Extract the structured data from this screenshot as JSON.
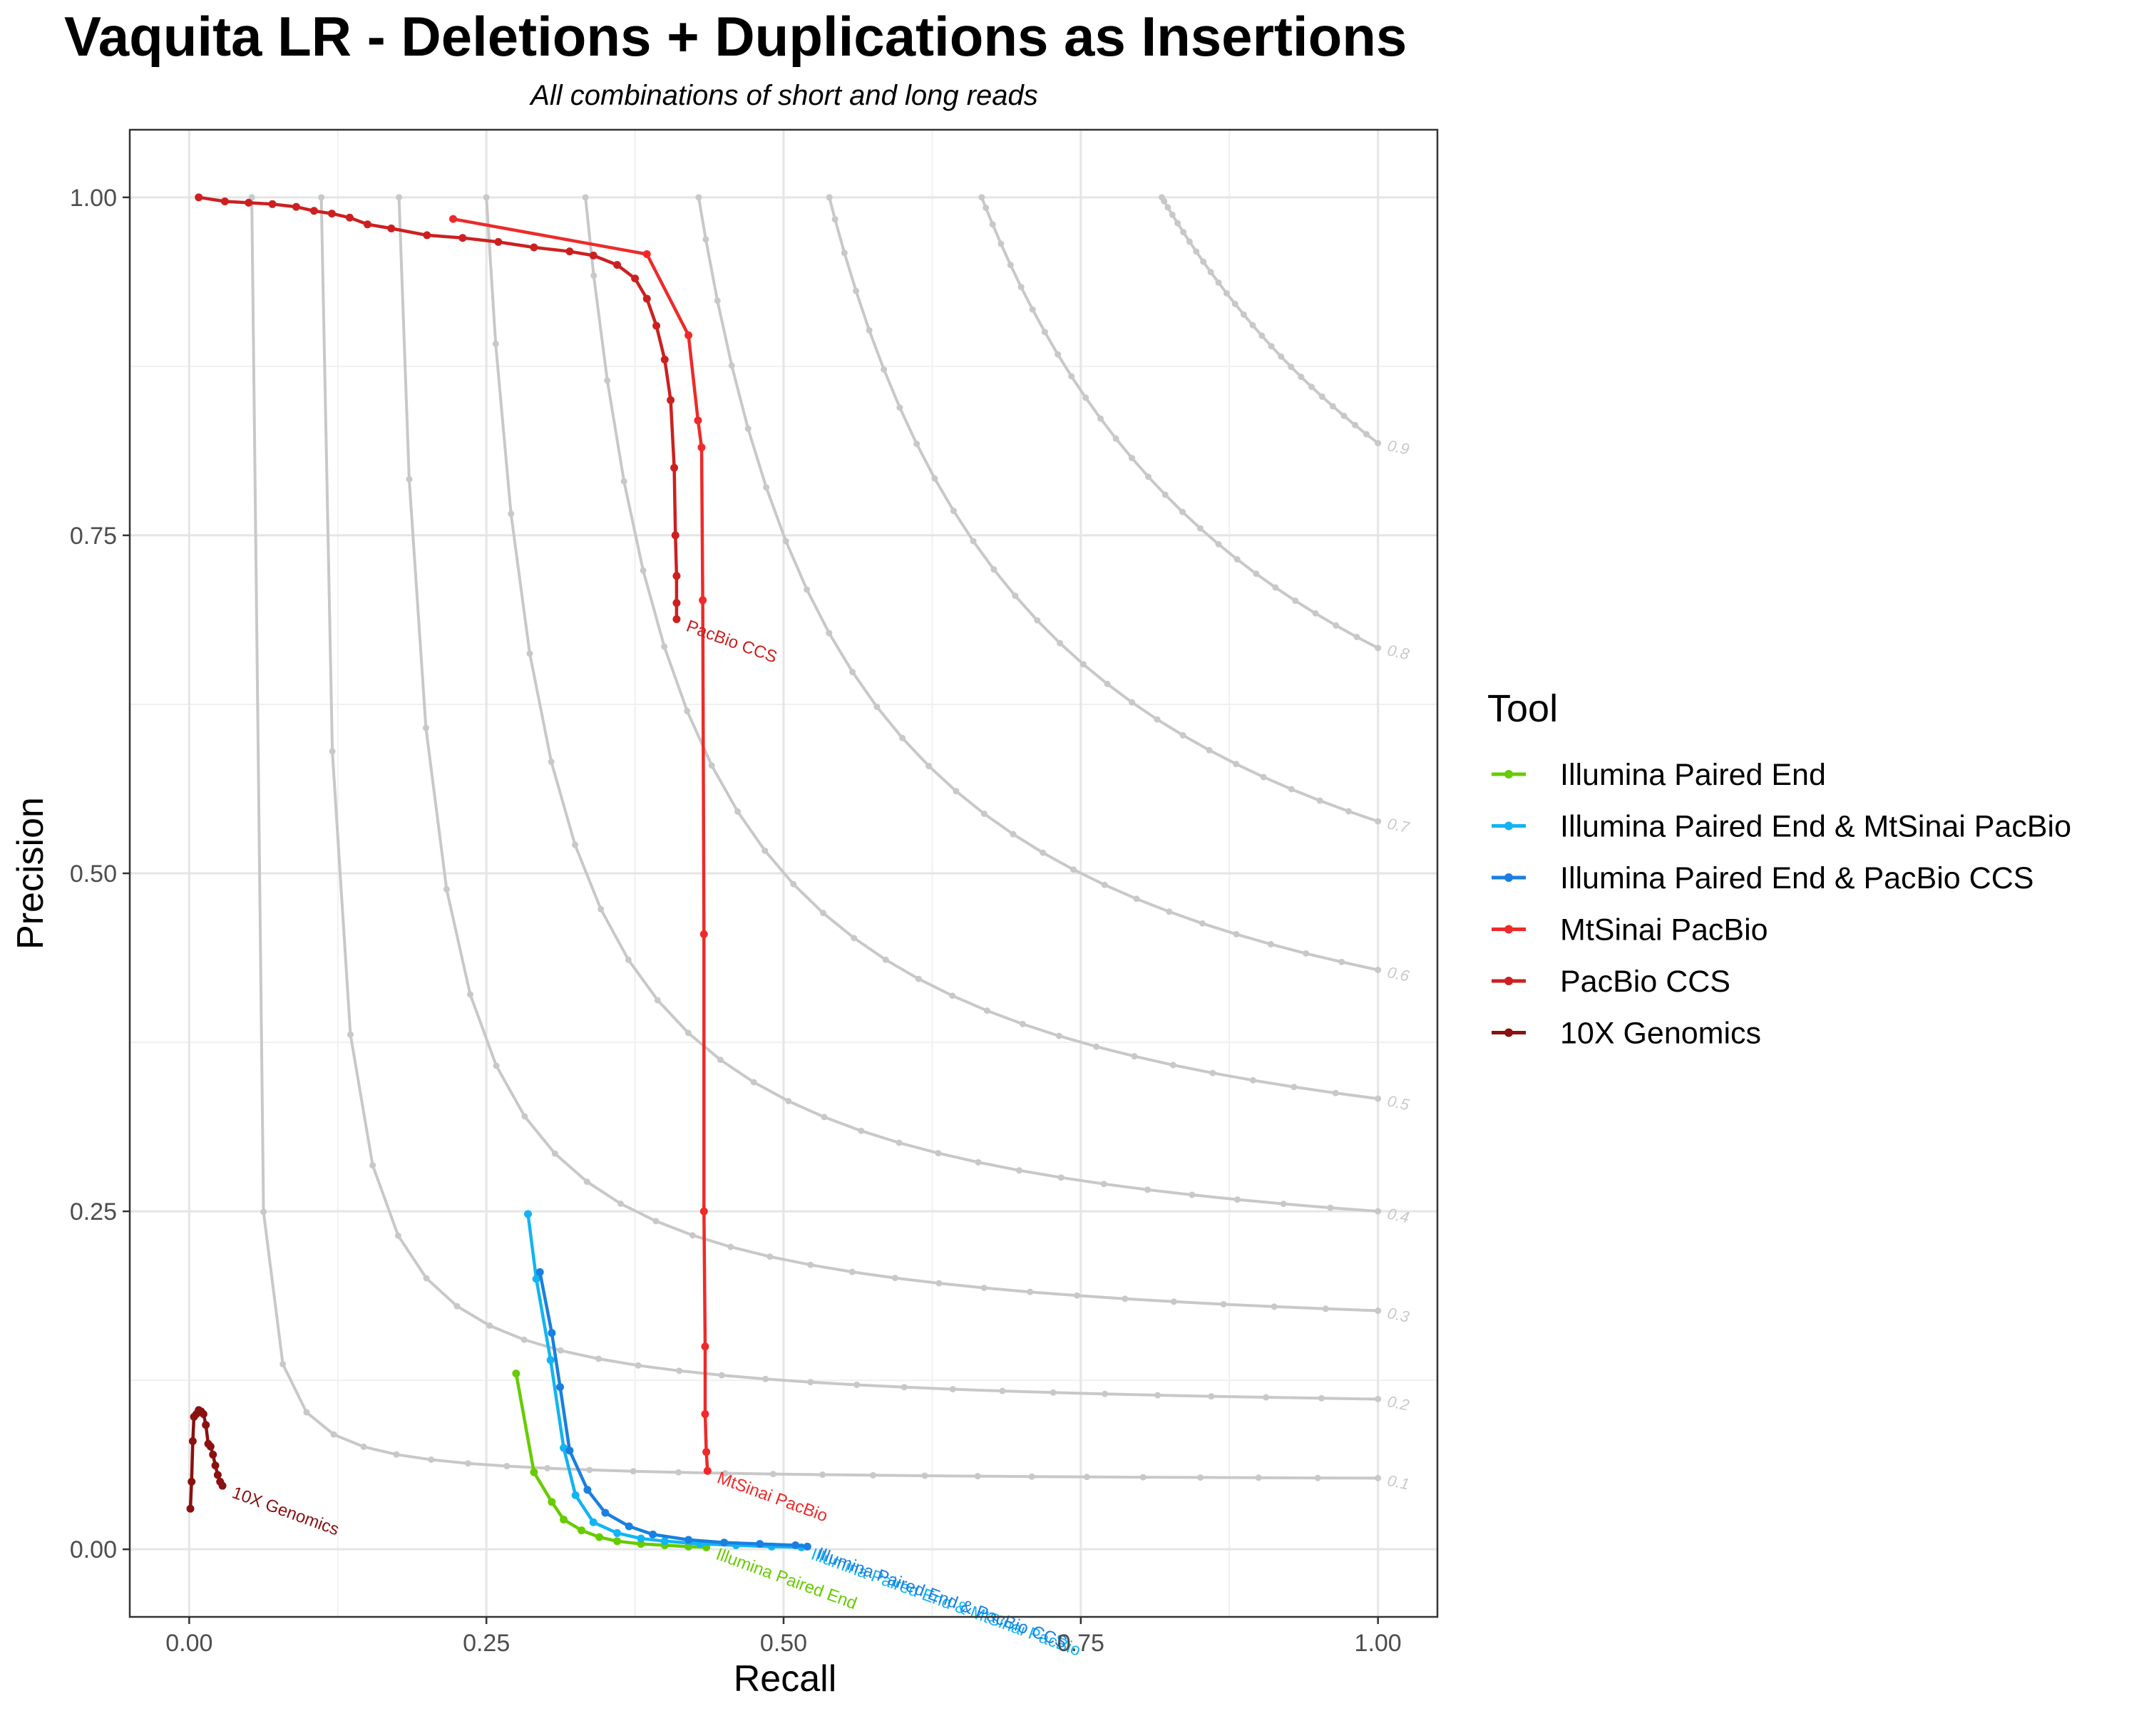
{
  "chart_data": {
    "type": "line",
    "title": "Vaquita LR - Deletions + Duplications as Insertions",
    "subtitle": "All combinations of short and long reads",
    "xlabel": "Recall",
    "ylabel": "Precision",
    "xlim": [
      -0.05,
      1.05
    ],
    "ylim": [
      -0.05,
      1.05
    ],
    "x_ticks": [
      0.0,
      0.25,
      0.5,
      0.75,
      1.0
    ],
    "x_tick_labels": [
      "0.00",
      "0.25",
      "0.50",
      "0.75",
      "1.00"
    ],
    "y_ticks": [
      0.0,
      0.25,
      0.5,
      0.75,
      1.0
    ],
    "y_tick_labels": [
      "0.00",
      "0.25",
      "0.50",
      "0.75",
      "1.00"
    ],
    "grid": true,
    "legend": {
      "title": "Tool",
      "position": "right",
      "entries": [
        "Illumina Paired End",
        "Illumina Paired End & MtSinai PacBio",
        "Illumina Paired End & PacBio CCS",
        "MtSinai PacBio",
        "PacBio CCS",
        "10X Genomics"
      ]
    },
    "f1_contours": {
      "color": "#c8c8c8",
      "levels": [
        0.1,
        0.2,
        0.3,
        0.4,
        0.5,
        0.6,
        0.7,
        0.8,
        0.9
      ],
      "labels": [
        "0.1",
        "0.2",
        "0.3",
        "0.4",
        "0.5",
        "0.6",
        "0.7",
        "0.8",
        "0.9"
      ]
    },
    "series": [
      {
        "name": "Illumina Paired End",
        "color": "#66cc00",
        "label": "Illumina Paired End",
        "x": [
          0.275,
          0.29,
          0.305,
          0.315,
          0.33,
          0.345,
          0.36,
          0.38,
          0.4,
          0.42,
          0.435
        ],
        "y": [
          0.13,
          0.057,
          0.035,
          0.022,
          0.014,
          0.009,
          0.006,
          0.004,
          0.003,
          0.002,
          0.0015
        ]
      },
      {
        "name": "Illumina Paired End & MtSinai PacBio",
        "color": "#12b4f2",
        "label": "Illumina Paired End & MtSinai PacBio",
        "x": [
          0.285,
          0.292,
          0.304,
          0.315,
          0.325,
          0.34,
          0.36,
          0.38,
          0.4,
          0.43,
          0.46,
          0.49,
          0.515
        ],
        "y": [
          0.248,
          0.2,
          0.14,
          0.075,
          0.04,
          0.02,
          0.012,
          0.008,
          0.006,
          0.004,
          0.003,
          0.002,
          0.0015
        ]
      },
      {
        "name": "Illumina Paired End & PacBio CCS",
        "color": "#1a7fe0",
        "label": "Illumina Paired End & PacBio CCS",
        "x": [
          0.295,
          0.305,
          0.312,
          0.32,
          0.335,
          0.35,
          0.37,
          0.39,
          0.42,
          0.45,
          0.48,
          0.51,
          0.52
        ],
        "y": [
          0.205,
          0.16,
          0.12,
          0.073,
          0.044,
          0.027,
          0.017,
          0.011,
          0.007,
          0.005,
          0.004,
          0.003,
          0.002
        ]
      },
      {
        "name": "MtSinai PacBio",
        "color": "#ee2a2a",
        "label": "MtSinai PacBio",
        "x": [
          0.222,
          0.385,
          0.42,
          0.428,
          0.431,
          0.432,
          0.433,
          0.433,
          0.434,
          0.434,
          0.435,
          0.436
        ],
        "y": [
          0.984,
          0.958,
          0.898,
          0.835,
          0.815,
          0.702,
          0.455,
          0.25,
          0.15,
          0.1,
          0.072,
          0.058
        ]
      },
      {
        "name": "PacBio CCS",
        "color": "#cc2020",
        "label": "PacBio CCS",
        "x": [
          0.008,
          0.03,
          0.05,
          0.07,
          0.09,
          0.105,
          0.12,
          0.135,
          0.15,
          0.17,
          0.2,
          0.23,
          0.26,
          0.29,
          0.32,
          0.34,
          0.36,
          0.375,
          0.385,
          0.393,
          0.4,
          0.405,
          0.408,
          0.409,
          0.41,
          0.41,
          0.41
        ],
        "y": [
          1.0,
          0.997,
          0.996,
          0.995,
          0.993,
          0.99,
          0.988,
          0.985,
          0.98,
          0.977,
          0.972,
          0.97,
          0.967,
          0.963,
          0.96,
          0.957,
          0.95,
          0.94,
          0.925,
          0.905,
          0.88,
          0.85,
          0.8,
          0.75,
          0.72,
          0.7,
          0.688
        ]
      },
      {
        "name": "10X Genomics",
        "color": "#8b1010",
        "label": "10X Genomics",
        "x": [
          0.001,
          0.002,
          0.003,
          0.004,
          0.006,
          0.008,
          0.01,
          0.012,
          0.014,
          0.016,
          0.018,
          0.02,
          0.022,
          0.024,
          0.026,
          0.028
        ],
        "y": [
          0.03,
          0.05,
          0.08,
          0.098,
          0.1,
          0.103,
          0.102,
          0.1,
          0.092,
          0.078,
          0.076,
          0.07,
          0.062,
          0.055,
          0.05,
          0.047
        ]
      }
    ]
  }
}
